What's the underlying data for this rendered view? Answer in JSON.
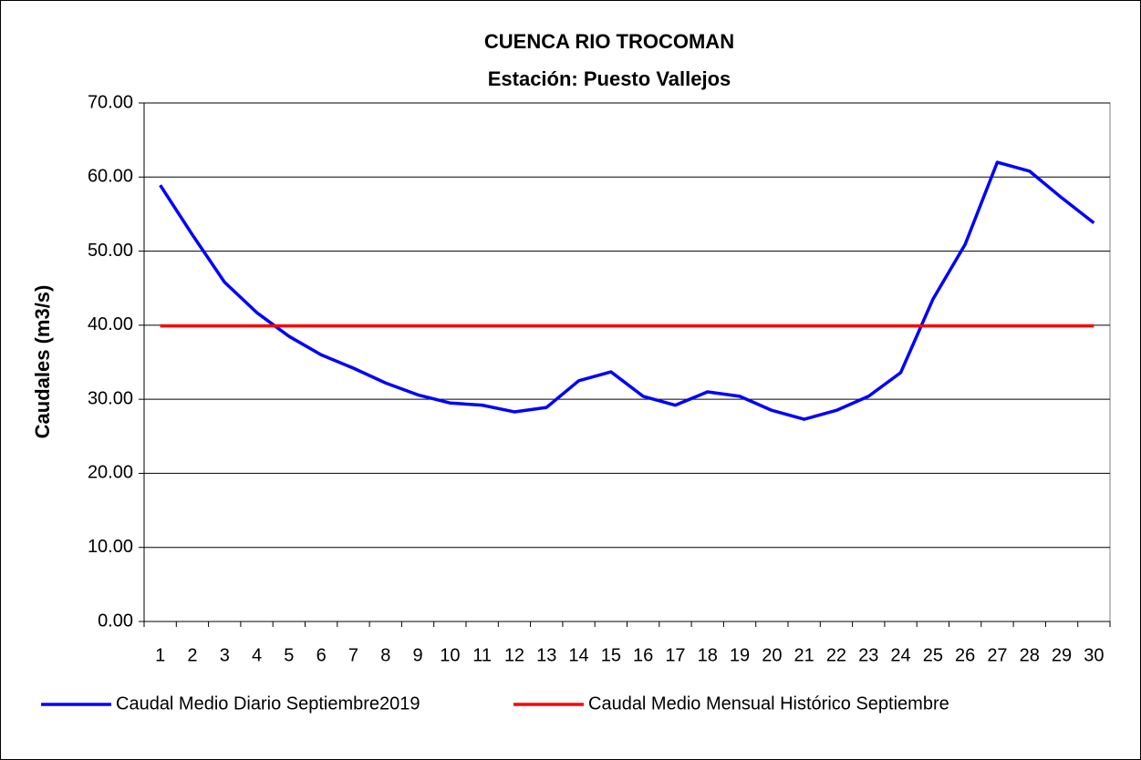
{
  "chart_data": {
    "type": "line",
    "title": "CUENCA RIO TROCOMAN",
    "subtitle": "Estación: Puesto Vallejos",
    "y_label": "Caudales (m3/s)",
    "categories": [
      "1",
      "2",
      "3",
      "4",
      "5",
      "6",
      "7",
      "8",
      "9",
      "10",
      "11",
      "12",
      "13",
      "14",
      "15",
      "16",
      "17",
      "18",
      "19",
      "20",
      "21",
      "22",
      "23",
      "24",
      "25",
      "26",
      "27",
      "28",
      "29",
      "30"
    ],
    "series": [
      {
        "name": "Caudal Medio Diario Septiembre2019",
        "color": "#0000ff",
        "values": [
          58.9,
          52.2,
          45.8,
          41.7,
          38.5,
          36.0,
          34.2,
          32.2,
          30.6,
          29.5,
          29.2,
          28.3,
          28.9,
          32.5,
          33.7,
          30.4,
          29.2,
          31.0,
          30.4,
          28.5,
          27.3,
          28.5,
          30.4,
          33.6,
          43.5,
          50.9,
          62.0,
          60.8,
          57.2,
          53.8
        ]
      },
      {
        "name": "Caudal Medio Mensual Histórico Septiembre",
        "color": "#ff0000",
        "values": [
          39.9,
          39.9,
          39.9,
          39.9,
          39.9,
          39.9,
          39.9,
          39.9,
          39.9,
          39.9,
          39.9,
          39.9,
          39.9,
          39.9,
          39.9,
          39.9,
          39.9,
          39.9,
          39.9,
          39.9,
          39.9,
          39.9,
          39.9,
          39.9,
          39.9,
          39.9,
          39.9,
          39.9,
          39.9,
          39.9
        ]
      }
    ],
    "ylim": [
      0,
      70
    ],
    "yticks": [
      {
        "value": 0,
        "label": "0.00"
      },
      {
        "value": 10,
        "label": "10.00"
      },
      {
        "value": 20,
        "label": "20.00"
      },
      {
        "value": 30,
        "label": "30.00"
      },
      {
        "value": 40,
        "label": "40.00"
      },
      {
        "value": 50,
        "label": "50.00"
      },
      {
        "value": 60,
        "label": "60.00"
      },
      {
        "value": 70,
        "label": "70.00"
      }
    ],
    "grid": true,
    "legend": "bottom"
  }
}
